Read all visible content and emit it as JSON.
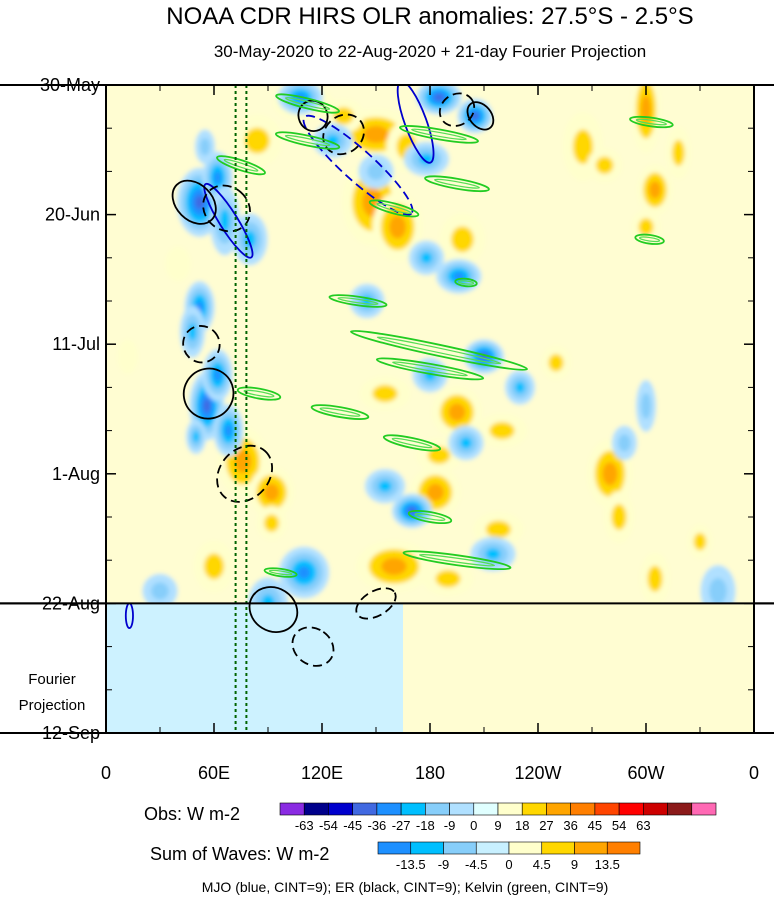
{
  "chart_data": {
    "type": "heatmap",
    "title": "NOAA CDR HIRS OLR anomalies: 27.5°S - 2.5°S",
    "subtitle": "30-May-2020 to 22-Aug-2020 + 21-day Fourier Projection",
    "x_ticks": [
      "0",
      "60E",
      "120E",
      "180",
      "120W",
      "60W",
      "0"
    ],
    "x_tick_lon": [
      0,
      60,
      120,
      180,
      240,
      300,
      360
    ],
    "y_ticks": [
      "30-May",
      "20-Jun",
      "11-Jul",
      "1-Aug",
      "22-Aug",
      "12-Sep"
    ],
    "y_tick_day": [
      0,
      21,
      42,
      63,
      84,
      105
    ],
    "xlim": [
      0,
      360
    ],
    "ylim_days": [
      0,
      105
    ],
    "obs_end_day": 84,
    "projection_label": "Fourier\nProjection",
    "obs_colorbar": {
      "label": "Obs: W m-2",
      "ticks": [
        "-63",
        "-54",
        "-45",
        "-36",
        "-27",
        "-18",
        "-9",
        "0",
        "9",
        "18",
        "27",
        "36",
        "45",
        "54",
        "63"
      ],
      "colors": [
        "#8a2be2",
        "#00008b",
        "#0000cd",
        "#4169e1",
        "#1e90ff",
        "#00bfff",
        "#87cefa",
        "#b0e0ff",
        "#e0ffff",
        "#ffffcc",
        "#ffd700",
        "#ffa500",
        "#ff7f00",
        "#ff4500",
        "#ff0000",
        "#cd0000",
        "#8b1a1a",
        "#ff69b4"
      ]
    },
    "waves_colorbar": {
      "label": "Sum of Waves: W m-2",
      "ticks": [
        "-13.5",
        "-9",
        "-4.5",
        "0",
        "4.5",
        "9",
        "13.5"
      ],
      "colors": [
        "#1e90ff",
        "#00bfff",
        "#87cefa",
        "#c8f0ff",
        "#ffffcc",
        "#ffd700",
        "#ffa500",
        "#ff7f00"
      ]
    },
    "legend_text": "MJO (blue, CINT=9); ER (black, CINT=9); Kelvin (green, CINT=9)",
    "series": [
      {
        "name": "Obs",
        "blobs": [
          {
            "lon": 110,
            "day": 3,
            "rl": 12,
            "rd": 2,
            "v": 18
          },
          {
            "lon": 150,
            "day": 8,
            "rl": 15,
            "rd": 3,
            "v": 27
          },
          {
            "lon": 132,
            "day": 5,
            "rl": 8,
            "rd": 2,
            "v": 20
          },
          {
            "lon": 167,
            "day": 10,
            "rl": 8,
            "rd": 3,
            "v": 22
          },
          {
            "lon": 148,
            "day": 19,
            "rl": 12,
            "rd": 5,
            "v": 27
          },
          {
            "lon": 162,
            "day": 23,
            "rl": 10,
            "rd": 4,
            "v": 30
          },
          {
            "lon": 198,
            "day": 25,
            "rl": 9,
            "rd": 3,
            "v": 18
          },
          {
            "lon": 265,
            "day": 10,
            "rl": 8,
            "rd": 4,
            "v": 20
          },
          {
            "lon": 277,
            "day": 13,
            "rl": 7,
            "rd": 2,
            "v": 18
          },
          {
            "lon": 300,
            "day": 4,
            "rl": 6,
            "rd": 5,
            "v": 27
          },
          {
            "lon": 305,
            "day": 17,
            "rl": 7,
            "rd": 3,
            "v": 25
          },
          {
            "lon": 318,
            "day": 11,
            "rl": 5,
            "rd": 3,
            "v": 20
          },
          {
            "lon": 300,
            "day": 23,
            "rl": 6,
            "rd": 2,
            "v": 15
          },
          {
            "lon": 84,
            "day": 9,
            "rl": 10,
            "rd": 3,
            "v": 18
          },
          {
            "lon": 40,
            "day": 29,
            "rl": 5,
            "rd": 2,
            "v": 12
          },
          {
            "lon": 12,
            "day": 44,
            "rl": 4,
            "rd": 2,
            "v": 12
          },
          {
            "lon": 76,
            "day": 61,
            "rl": 10,
            "rd": 4,
            "v": 27
          },
          {
            "lon": 92,
            "day": 66,
            "rl": 9,
            "rd": 3,
            "v": 30
          },
          {
            "lon": 92,
            "day": 71,
            "rl": 6,
            "rd": 2,
            "v": 22
          },
          {
            "lon": 155,
            "day": 50,
            "rl": 10,
            "rd": 2,
            "v": 22
          },
          {
            "lon": 195,
            "day": 53,
            "rl": 10,
            "rd": 3,
            "v": 27
          },
          {
            "lon": 220,
            "day": 56,
            "rl": 10,
            "rd": 2,
            "v": 22
          },
          {
            "lon": 185,
            "day": 60,
            "rl": 9,
            "rd": 2,
            "v": 20
          },
          {
            "lon": 183,
            "day": 66,
            "rl": 10,
            "rd": 3,
            "v": 27
          },
          {
            "lon": 218,
            "day": 72,
            "rl": 10,
            "rd": 2,
            "v": 20
          },
          {
            "lon": 160,
            "day": 78,
            "rl": 15,
            "rd": 3,
            "v": 27
          },
          {
            "lon": 190,
            "day": 80,
            "rl": 10,
            "rd": 2,
            "v": 22
          },
          {
            "lon": 280,
            "day": 63,
            "rl": 9,
            "rd": 4,
            "v": 27
          },
          {
            "lon": 285,
            "day": 70,
            "rl": 6,
            "rd": 3,
            "v": 18
          },
          {
            "lon": 305,
            "day": 80,
            "rl": 6,
            "rd": 3,
            "v": 20
          },
          {
            "lon": 330,
            "day": 74,
            "rl": 5,
            "rd": 2,
            "v": 15
          },
          {
            "lon": 60,
            "day": 78,
            "rl": 8,
            "rd": 3,
            "v": 15
          },
          {
            "lon": 105,
            "day": 87,
            "rl": 10,
            "rd": 2,
            "v": 12
          },
          {
            "lon": 95,
            "day": 90,
            "rl": 8,
            "rd": 2,
            "v": 10
          },
          {
            "lon": 250,
            "day": 45,
            "rl": 6,
            "rd": 2,
            "v": 15
          },
          {
            "lon": 55,
            "day": 10,
            "rl": 4,
            "rd": 2,
            "v": -18
          },
          {
            "lon": 52,
            "day": 19,
            "rl": 9,
            "rd": 4,
            "v": -45
          },
          {
            "lon": 62,
            "day": 15,
            "rl": 6,
            "rd": 3,
            "v": -36
          },
          {
            "lon": 66,
            "day": 22,
            "rl": 6,
            "rd": 4,
            "v": -27
          },
          {
            "lon": 80,
            "day": 25,
            "rl": 7,
            "rd": 3,
            "v": -30
          },
          {
            "lon": 108,
            "day": 2,
            "rl": 9,
            "rd": 2,
            "v": -36
          },
          {
            "lon": 126,
            "day": 9,
            "rl": 8,
            "rd": 2,
            "v": -27
          },
          {
            "lon": 185,
            "day": 2,
            "rl": 9,
            "rd": 2,
            "v": -45
          },
          {
            "lon": 205,
            "day": 5,
            "rl": 7,
            "rd": 2,
            "v": -45
          },
          {
            "lon": 178,
            "day": 12,
            "rl": 9,
            "rd": 2,
            "v": -27
          },
          {
            "lon": 150,
            "day": 14,
            "rl": 7,
            "rd": 2,
            "v": -18
          },
          {
            "lon": 196,
            "day": 31,
            "rl": 9,
            "rd": 2,
            "v": -36
          },
          {
            "lon": 178,
            "day": 28,
            "rl": 7,
            "rd": 2,
            "v": -27
          },
          {
            "lon": 145,
            "day": 35,
            "rl": 7,
            "rd": 2,
            "v": -27
          },
          {
            "lon": 52,
            "day": 36,
            "rl": 6,
            "rd": 3,
            "v": -36
          },
          {
            "lon": 48,
            "day": 40,
            "rl": 5,
            "rd": 3,
            "v": -27
          },
          {
            "lon": 56,
            "day": 52,
            "rl": 7,
            "rd": 4,
            "v": -45
          },
          {
            "lon": 62,
            "day": 47,
            "rl": 6,
            "rd": 3,
            "v": -36
          },
          {
            "lon": 68,
            "day": 56,
            "rl": 6,
            "rd": 3,
            "v": -36
          },
          {
            "lon": 50,
            "day": 57,
            "rl": 4,
            "rd": 2,
            "v": -27
          },
          {
            "lon": 210,
            "day": 44,
            "rl": 8,
            "rd": 2,
            "v": -45
          },
          {
            "lon": 230,
            "day": 49,
            "rl": 6,
            "rd": 2,
            "v": -27
          },
          {
            "lon": 180,
            "day": 47,
            "rl": 7,
            "rd": 2,
            "v": -27
          },
          {
            "lon": 200,
            "day": 58,
            "rl": 7,
            "rd": 2,
            "v": -27
          },
          {
            "lon": 155,
            "day": 65,
            "rl": 8,
            "rd": 2,
            "v": -27
          },
          {
            "lon": 170,
            "day": 69,
            "rl": 8,
            "rd": 2,
            "v": -45
          },
          {
            "lon": 215,
            "day": 76,
            "rl": 9,
            "rd": 2,
            "v": -27
          },
          {
            "lon": 110,
            "day": 79,
            "rl": 10,
            "rd": 3,
            "v": -36
          },
          {
            "lon": 90,
            "day": 84,
            "rl": 8,
            "rd": 3,
            "v": -27
          },
          {
            "lon": 30,
            "day": 82,
            "rl": 7,
            "rd": 2,
            "v": -18
          },
          {
            "lon": 340,
            "day": 82,
            "rl": 7,
            "rd": 3,
            "v": -20
          },
          {
            "lon": 288,
            "day": 58,
            "rl": 5,
            "rd": 2,
            "v": -18
          },
          {
            "lon": 300,
            "day": 52,
            "rl": 4,
            "rd": 3,
            "v": -18
          }
        ]
      },
      {
        "name": "MJO",
        "contours": [
          {
            "lon": 172,
            "day": 6,
            "rl": 6,
            "rd": 7,
            "rot": -20,
            "dashed": false
          },
          {
            "lon": 68,
            "day": 22,
            "rl": 5,
            "rd": 7,
            "rot": -32,
            "dashed": false
          },
          {
            "lon": 140,
            "day": 13,
            "rl": 40,
            "rd": 2.5,
            "rot": 42,
            "dashed": true
          },
          {
            "lon": 13,
            "day": 86,
            "rl": 2,
            "rd": 2,
            "rot": 0,
            "dashed": false
          }
        ]
      },
      {
        "name": "ER",
        "contours": [
          {
            "lon": 49,
            "day": 19,
            "rl": 10,
            "rd": 4,
            "rot": -45,
            "dashed": false
          },
          {
            "lon": 67,
            "day": 20,
            "rl": 12,
            "rd": 4,
            "rot": -50,
            "dashed": true
          },
          {
            "lon": 115,
            "day": 5,
            "rl": 8,
            "rd": 2.5,
            "rot": -25,
            "dashed": false
          },
          {
            "lon": 132,
            "day": 8,
            "rl": 12,
            "rd": 3,
            "rot": -40,
            "dashed": true
          },
          {
            "lon": 195,
            "day": 4,
            "rl": 10,
            "rd": 2.5,
            "rot": -35,
            "dashed": true
          },
          {
            "lon": 208,
            "day": 5,
            "rl": 6,
            "rd": 2.5,
            "rot": -40,
            "dashed": false
          },
          {
            "lon": 53,
            "day": 42,
            "rl": 10,
            "rd": 3,
            "rot": -45,
            "dashed": true
          },
          {
            "lon": 57,
            "day": 50,
            "rl": 14,
            "rd": 4,
            "rot": -55,
            "dashed": false
          },
          {
            "lon": 77,
            "day": 63,
            "rl": 17,
            "rd": 4,
            "rot": -48,
            "dashed": true
          },
          {
            "lon": 93,
            "day": 85,
            "rl": 12,
            "rd": 4,
            "rot": -58,
            "dashed": false
          },
          {
            "lon": 115,
            "day": 91,
            "rl": 10,
            "rd": 3.5,
            "rot": -55,
            "dashed": true
          },
          {
            "lon": 150,
            "day": 84,
            "rl": 12,
            "rd": 2,
            "rot": -30,
            "dashed": true
          }
        ]
      },
      {
        "name": "Kelvin",
        "contours": [
          {
            "lon": 112,
            "day": 3,
            "rl": 18,
            "rd": 0.8,
            "rot": 14,
            "dashed": false
          },
          {
            "lon": 112,
            "day": 9,
            "rl": 18,
            "rd": 0.8,
            "rot": 12,
            "dashed": false
          },
          {
            "lon": 185,
            "day": 8,
            "rl": 22,
            "rd": 0.8,
            "rot": 10,
            "dashed": false
          },
          {
            "lon": 195,
            "day": 16,
            "rl": 18,
            "rd": 0.8,
            "rot": 10,
            "dashed": false
          },
          {
            "lon": 75,
            "day": 13,
            "rl": 14,
            "rd": 0.8,
            "rot": 18,
            "dashed": false
          },
          {
            "lon": 160,
            "day": 20,
            "rl": 14,
            "rd": 0.8,
            "rot": 15,
            "dashed": false
          },
          {
            "lon": 303,
            "day": 6,
            "rl": 12,
            "rd": 0.7,
            "rot": 8,
            "dashed": false
          },
          {
            "lon": 302,
            "day": 25,
            "rl": 8,
            "rd": 0.7,
            "rot": 8,
            "dashed": false
          },
          {
            "lon": 200,
            "day": 32,
            "rl": 6,
            "rd": 0.6,
            "rot": 6,
            "dashed": false
          },
          {
            "lon": 140,
            "day": 35,
            "rl": 16,
            "rd": 0.7,
            "rot": 8,
            "dashed": false
          },
          {
            "lon": 185,
            "day": 43,
            "rl": 50,
            "rd": 0.9,
            "rot": 12,
            "dashed": false
          },
          {
            "lon": 180,
            "day": 46,
            "rl": 30,
            "rd": 0.8,
            "rot": 10,
            "dashed": false
          },
          {
            "lon": 85,
            "day": 50,
            "rl": 12,
            "rd": 0.8,
            "rot": 10,
            "dashed": false
          },
          {
            "lon": 130,
            "day": 53,
            "rl": 16,
            "rd": 0.8,
            "rot": 10,
            "dashed": false
          },
          {
            "lon": 170,
            "day": 58,
            "rl": 16,
            "rd": 0.8,
            "rot": 12,
            "dashed": false
          },
          {
            "lon": 180,
            "day": 70,
            "rl": 12,
            "rd": 0.8,
            "rot": 10,
            "dashed": false
          },
          {
            "lon": 195,
            "day": 77,
            "rl": 30,
            "rd": 0.8,
            "rot": 8,
            "dashed": false
          },
          {
            "lon": 97,
            "day": 79,
            "rl": 9,
            "rd": 0.6,
            "rot": 8,
            "dashed": false
          }
        ]
      }
    ],
    "meridians_lon": [
      72,
      78
    ]
  }
}
